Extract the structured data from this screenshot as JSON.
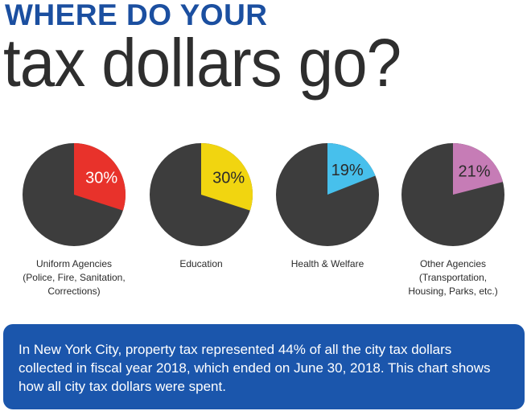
{
  "header": {
    "headline": "WHERE DO YOUR",
    "subhead": "tax dollars go?"
  },
  "chart_data": {
    "type": "pie",
    "title": "",
    "series": [
      {
        "category": "Uniform Agencies\n(Police, Fire, Sanitation,\nCorrections)",
        "value": 30,
        "label": "30%"
      },
      {
        "category": "Education",
        "value": 30,
        "label": "30%"
      },
      {
        "category": "Health & Welfare",
        "value": 19,
        "label": "19%"
      },
      {
        "category": "Other Agencies\n(Transportation,\nHousing, Parks, etc.)",
        "value": 21,
        "label": "21%"
      }
    ],
    "colors": {
      "remainder": "#3d3d3d",
      "slices": [
        "#e8322b",
        "#f1d510",
        "#47c0ec",
        "#c67cb6"
      ],
      "label_colors": [
        "#ffffff",
        "#2b2b2b",
        "#2b2b2b",
        "#2b2b2b"
      ]
    }
  },
  "note": {
    "text": "In New York City, property tax represented 44% of all the city tax dollars collected in fiscal year 2018, which ended on June 30, 2018. This chart shows how all city tax dollars were spent."
  }
}
